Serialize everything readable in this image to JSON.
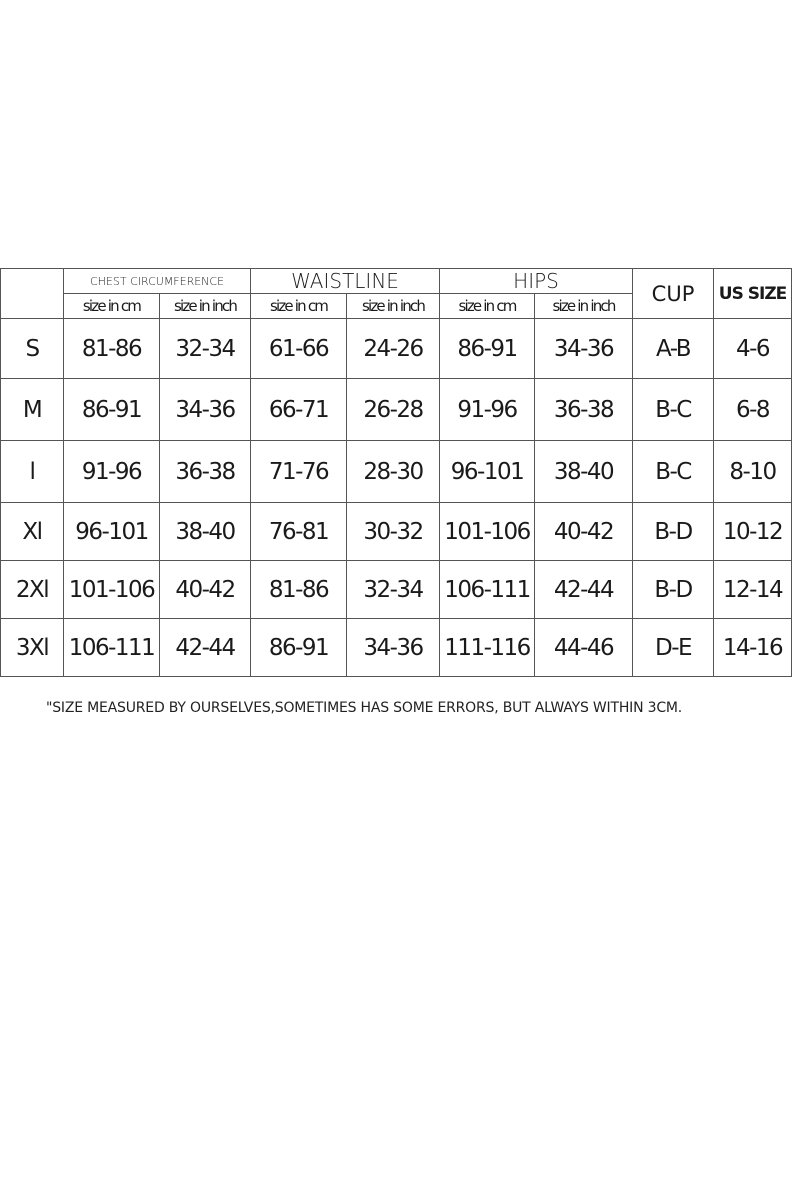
{
  "header": {
    "chest": "CHEST CIRCUMFERENCE",
    "waist": "WAISTLINE",
    "hips": "HIPS",
    "cup": "CUP",
    "us_size": "US SIZE",
    "cm": "size in cm",
    "inch": "size in inch"
  },
  "rows": [
    {
      "size": "S",
      "chest_cm": "81-86",
      "chest_in": "32-34",
      "waist_cm": "61-66",
      "waist_in": "24-26",
      "hips_cm": "86-91",
      "hips_in": "34-36",
      "cup": "A-B",
      "us": "4-6"
    },
    {
      "size": "M",
      "chest_cm": "86-91",
      "chest_in": "34-36",
      "waist_cm": "66-71",
      "waist_in": "26-28",
      "hips_cm": "91-96",
      "hips_in": "36-38",
      "cup": "B-C",
      "us": "6-8"
    },
    {
      "size": "l",
      "chest_cm": "91-96",
      "chest_in": "36-38",
      "waist_cm": "71-76",
      "waist_in": "28-30",
      "hips_cm": "96-101",
      "hips_in": "38-40",
      "cup": "B-C",
      "us": "8-10"
    },
    {
      "size": "Xl",
      "chest_cm": "96-101",
      "chest_in": "38-40",
      "waist_cm": "76-81",
      "waist_in": "30-32",
      "hips_cm": "101-106",
      "hips_in": "40-42",
      "cup": "B-D",
      "us": "10-12"
    },
    {
      "size": "2Xl",
      "chest_cm": "101-106",
      "chest_in": "40-42",
      "waist_cm": "81-86",
      "waist_in": "32-34",
      "hips_cm": "106-111",
      "hips_in": "42-44",
      "cup": "B-D",
      "us": "12-14"
    },
    {
      "size": "3Xl",
      "chest_cm": "106-111",
      "chest_in": "42-44",
      "waist_cm": "86-91",
      "waist_in": "34-36",
      "hips_cm": "111-116",
      "hips_in": "44-46",
      "cup": "D-E",
      "us": "14-16"
    }
  ],
  "note": "\"SIZE MEASURED BY OURSELVES,SOMETIMES HAS SOME ERRORS, BUT ALWAYS WITHIN 3CM."
}
